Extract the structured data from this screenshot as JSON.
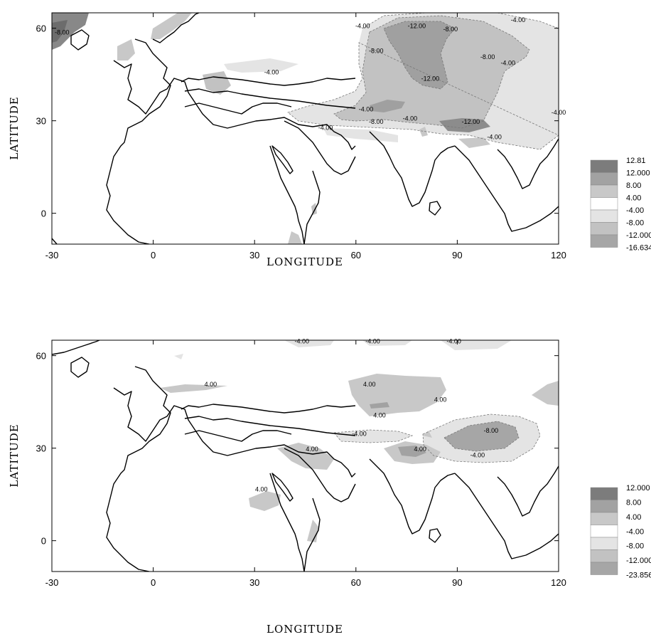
{
  "panels": [
    {
      "id": "top",
      "xlabel": "LONGITUDE",
      "ylabel": "LATITUDE",
      "xticks": [
        "-30",
        "0",
        "30",
        "60",
        "90",
        "120"
      ],
      "yticks": [
        "60",
        "30",
        "0"
      ],
      "legend": {
        "labels": [
          "12.81",
          "12.000",
          "8.00",
          "4.00",
          "-4.00",
          "-8.00",
          "-12.000",
          "-16.634"
        ],
        "colors": [
          "#7c7c7c",
          "#a2a2a2",
          "#c8c8c8",
          "#ffffff",
          "#e4e4e4",
          "#c2c2c2",
          "#a6a6a6",
          "#888888"
        ]
      },
      "contour_labels": [
        {
          "text": "-8.00",
          "lon": -27,
          "lat": 58
        },
        {
          "text": "-4.00",
          "lon": 62,
          "lat": 60
        },
        {
          "text": "-12.00",
          "lon": 78,
          "lat": 60
        },
        {
          "text": "-8.00",
          "lon": 88,
          "lat": 59
        },
        {
          "text": "-4.00",
          "lon": 108,
          "lat": 62
        },
        {
          "text": "-8.00",
          "lon": 66,
          "lat": 52
        },
        {
          "text": "-8.00",
          "lon": 99,
          "lat": 50
        },
        {
          "text": "-4.00",
          "lon": 105,
          "lat": 48
        },
        {
          "text": "-4.00",
          "lon": 35,
          "lat": 45
        },
        {
          "text": "-12.00",
          "lon": 82,
          "lat": 43
        },
        {
          "text": "-4.00",
          "lon": 63,
          "lat": 33
        },
        {
          "text": "-8.00",
          "lon": 66,
          "lat": 29
        },
        {
          "text": "-4.00",
          "lon": 76,
          "lat": 30
        },
        {
          "text": "-12.00",
          "lon": 94,
          "lat": 29
        },
        {
          "text": "-4.00",
          "lon": 120,
          "lat": 32
        },
        {
          "text": "-4.00",
          "lon": 51,
          "lat": 27
        },
        {
          "text": "-4.00",
          "lon": 101,
          "lat": 24
        }
      ]
    },
    {
      "id": "bottom",
      "xlabel": "LONGITUDE",
      "ylabel": "LATITUDE",
      "xticks": [
        "-30",
        "0",
        "30",
        "60",
        "90",
        "120"
      ],
      "yticks": [
        "60",
        "30",
        "0"
      ],
      "legend": {
        "labels": [
          "12.000",
          "8.00",
          "4.00",
          "-4.00",
          "-8.00",
          "-12.000",
          "-23.856"
        ],
        "colors": [
          "#7c7c7c",
          "#a2a2a2",
          "#c8c8c8",
          "#ffffff",
          "#e4e4e4",
          "#c2c2c2",
          "#a6a6a6",
          "#888888"
        ]
      },
      "contour_labels": [
        {
          "text": "-4.00",
          "lon": 44,
          "lat": 64
        },
        {
          "text": "-4.00",
          "lon": 65,
          "lat": 64
        },
        {
          "text": "-4.00",
          "lon": 89,
          "lat": 64
        },
        {
          "text": "4.00",
          "lon": 17,
          "lat": 50
        },
        {
          "text": "4.00",
          "lon": 64,
          "lat": 50
        },
        {
          "text": "4.00",
          "lon": 85,
          "lat": 45
        },
        {
          "text": "4.00",
          "lon": 67,
          "lat": 40
        },
        {
          "text": "-4.00",
          "lon": 61,
          "lat": 34
        },
        {
          "text": "4.00",
          "lon": 47,
          "lat": 29
        },
        {
          "text": "4.00",
          "lon": 79,
          "lat": 29
        },
        {
          "text": "-8.00",
          "lon": 100,
          "lat": 35
        },
        {
          "text": "-4.00",
          "lon": 96,
          "lat": 27
        },
        {
          "text": "4.00",
          "lon": 32,
          "lat": 16
        }
      ]
    }
  ]
}
